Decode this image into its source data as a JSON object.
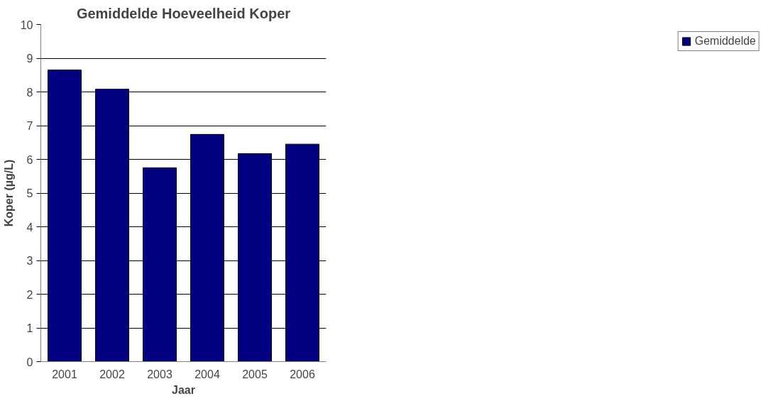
{
  "chart_data": {
    "type": "bar",
    "title": "Gemiddelde Hoeveelheid Koper",
    "xlabel": "Jaar",
    "ylabel": "Koper (µg/L)",
    "categories": [
      "2001",
      "2002",
      "2003",
      "2004",
      "2005",
      "2006"
    ],
    "series": [
      {
        "name": "Gemiddelde",
        "color": "#000080",
        "values": [
          8.65,
          8.08,
          5.75,
          6.74,
          6.17,
          6.45
        ]
      }
    ],
    "ylim": [
      0,
      10
    ],
    "yticks": [
      0,
      1,
      2,
      3,
      4,
      5,
      6,
      7,
      8,
      9,
      10
    ],
    "grid": "y",
    "legend": "right"
  }
}
